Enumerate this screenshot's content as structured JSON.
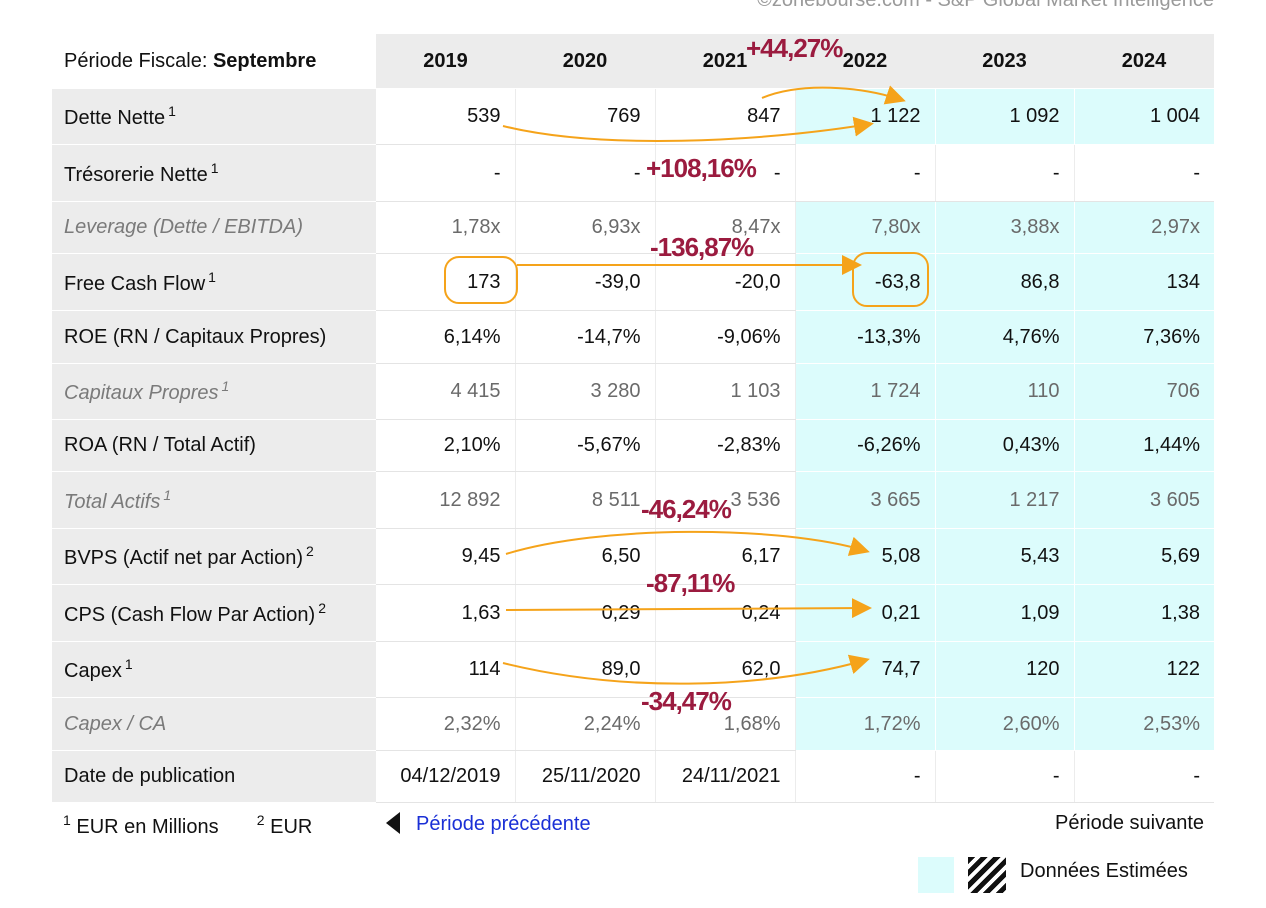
{
  "source": "©zonebourse.com - S&P Global Market Intelligence",
  "header": {
    "period_label": "Période Fiscale: ",
    "period_value": "Septembre",
    "years": [
      "2019",
      "2020",
      "2021",
      "2022",
      "2023",
      "2024"
    ]
  },
  "rows": [
    {
      "label": "Dette Nette",
      "sup": "1",
      "italic": false,
      "values": [
        "539",
        "769",
        "847",
        "1 122",
        "1 092",
        "1 004"
      ]
    },
    {
      "label": "Trésorerie Nette",
      "sup": "1",
      "italic": false,
      "values": [
        "-",
        "-",
        "-",
        "-",
        "-",
        "-"
      ]
    },
    {
      "label": "Leverage (Dette / EBITDA)",
      "sup": "",
      "italic": true,
      "values": [
        "1,78x",
        "6,93x",
        "8,47x",
        "7,80x",
        "3,88x",
        "2,97x"
      ]
    },
    {
      "label": "Free Cash Flow",
      "sup": "1",
      "italic": false,
      "values": [
        "173",
        "-39,0",
        "-20,0",
        "-63,8",
        "86,8",
        "134"
      ]
    },
    {
      "label": "ROE (RN / Capitaux Propres)",
      "sup": "",
      "italic": false,
      "values": [
        "6,14%",
        "-14,7%",
        "-9,06%",
        "-13,3%",
        "4,76%",
        "7,36%"
      ]
    },
    {
      "label": "Capitaux Propres",
      "sup": "1",
      "italic": true,
      "values": [
        "4 415",
        "3 280",
        "1 103",
        "1 724",
        "110",
        "706"
      ]
    },
    {
      "label": "ROA (RN / Total Actif)",
      "sup": "",
      "italic": false,
      "values": [
        "2,10%",
        "-5,67%",
        "-2,83%",
        "-6,26%",
        "0,43%",
        "1,44%"
      ]
    },
    {
      "label": "Total Actifs",
      "sup": "1",
      "italic": true,
      "values": [
        "12 892",
        "8 511",
        "3 536",
        "3 665",
        "1 217",
        "3 605"
      ]
    },
    {
      "label": "BVPS (Actif net par Action)",
      "sup": "2",
      "italic": false,
      "values": [
        "9,45",
        "6,50",
        "6,17",
        "5,08",
        "5,43",
        "5,69"
      ]
    },
    {
      "label": "CPS (Cash Flow Par Action)",
      "sup": "2",
      "italic": false,
      "values": [
        "1,63",
        "0,29",
        "0,24",
        "0,21",
        "1,09",
        "1,38"
      ]
    },
    {
      "label": "Capex",
      "sup": "1",
      "italic": false,
      "values": [
        "114",
        "89,0",
        "62,0",
        "74,7",
        "120",
        "122"
      ]
    },
    {
      "label": "Capex / CA",
      "sup": "",
      "italic": true,
      "values": [
        "2,32%",
        "2,24%",
        "1,68%",
        "1,72%",
        "2,60%",
        "2,53%"
      ]
    },
    {
      "label": "Date de publication",
      "sup": "",
      "italic": false,
      "values": [
        "04/12/2019",
        "25/11/2020",
        "24/11/2021",
        "-",
        "-",
        "-"
      ]
    }
  ],
  "estimated_columns": [
    3,
    4,
    5
  ],
  "footer": {
    "note1_sup": "1",
    "note1": "EUR en Millions",
    "note2_sup": "2",
    "note2": "EUR",
    "prev_label": "Période précédente",
    "next_label": "Période suivante",
    "legend_label": "Données Estimées"
  },
  "annotations": {
    "color": "#9b1b3f",
    "arrow_color": "#f5a31a",
    "labels": [
      "+44,27%",
      "+108,16%",
      "-136,87%",
      "-46,24%",
      "-87,11%",
      "-34,47%"
    ]
  }
}
